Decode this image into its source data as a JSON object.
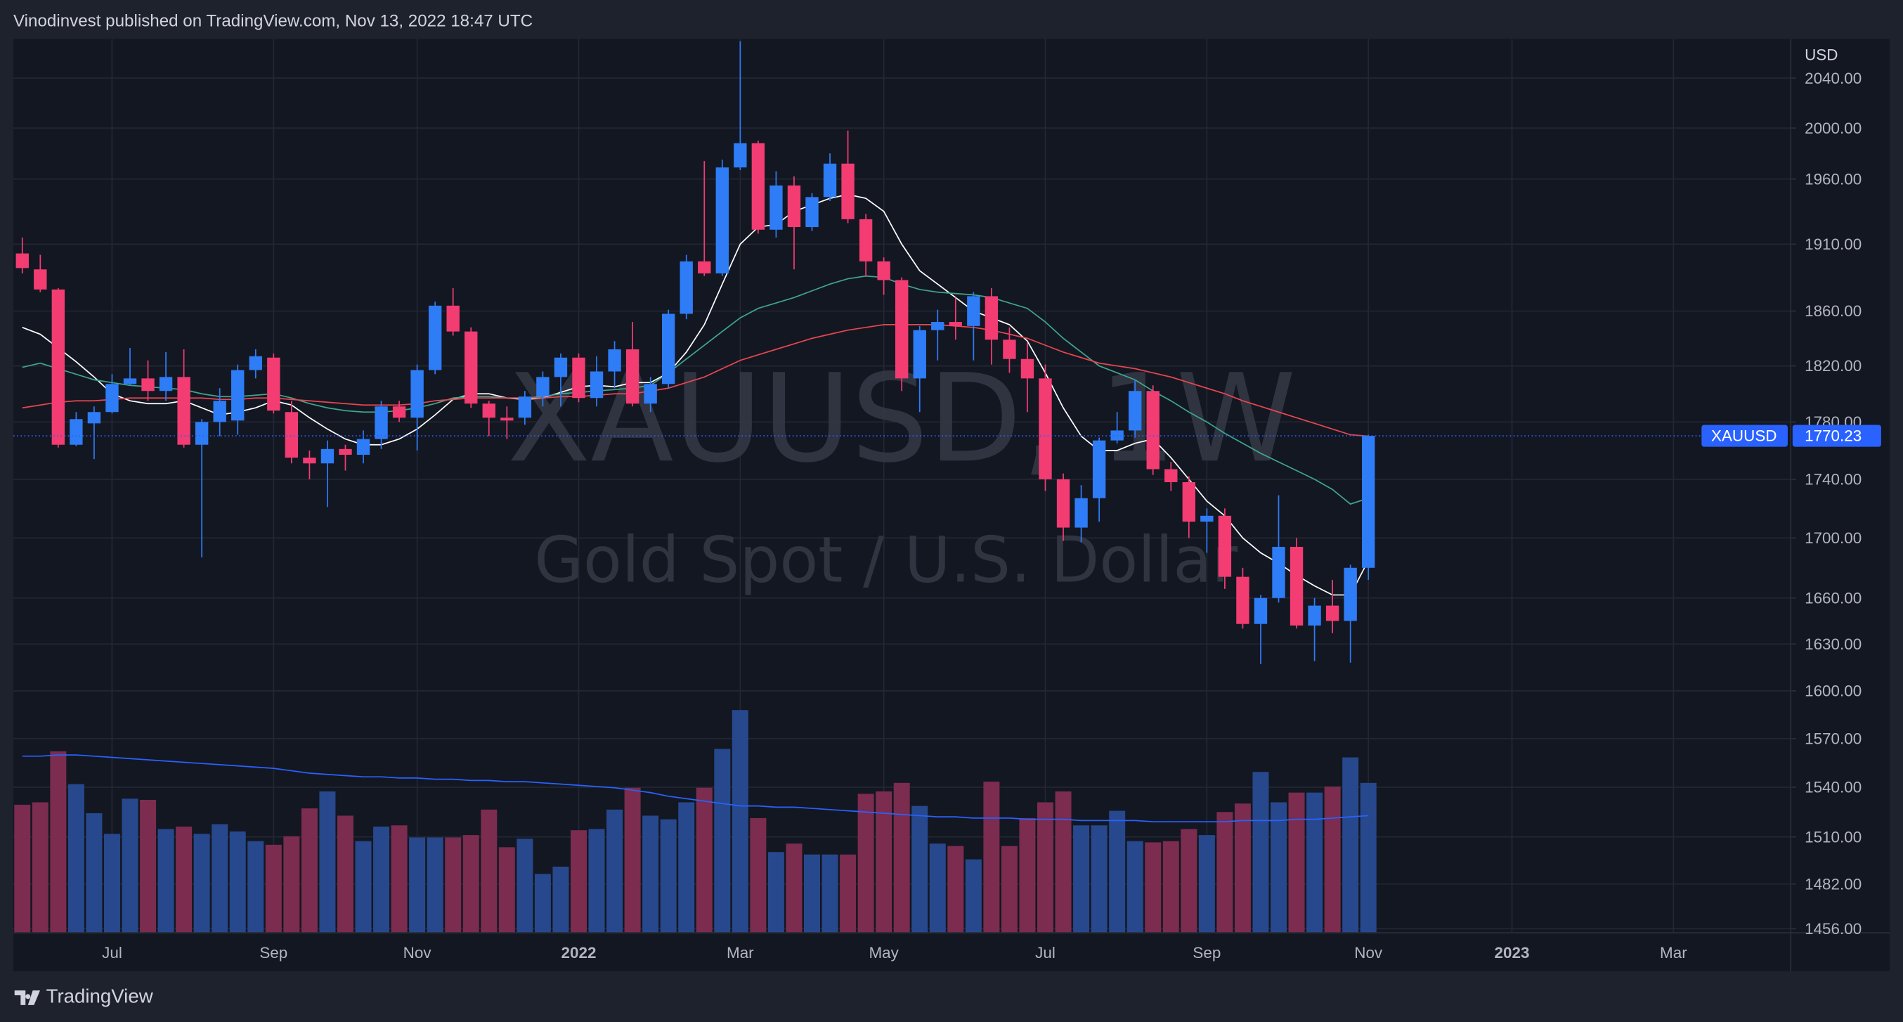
{
  "header": {
    "text": "Vinodinvest published on TradingView.com, Nov 13, 2022 18:47 UTC"
  },
  "footer": {
    "brand": "TradingView"
  },
  "chart_data": {
    "type": "candlestick",
    "watermark": "XAUUSD, 1W",
    "watermark_subtitle": "Gold Spot / U.S. Dollar",
    "symbol": "XAUUSD",
    "currency": "USD",
    "log_scale": true,
    "grid": true,
    "up_color": "#2e7cf6",
    "down_color": "#f23c72",
    "volume_up_color": "#27488c",
    "volume_down_color": "#7b2c4f",
    "ylim": [
      1454,
      2072
    ],
    "yticks": [
      {
        "value": 2040,
        "label": "2040.00"
      },
      {
        "value": 2000,
        "label": "2000.00"
      },
      {
        "value": 1960,
        "label": "1960.00"
      },
      {
        "value": 1910,
        "label": "1910.00"
      },
      {
        "value": 1860,
        "label": "1860.00"
      },
      {
        "value": 1820,
        "label": "1820.00"
      },
      {
        "value": 1780,
        "label": "1780.00"
      },
      {
        "value": 1740,
        "label": "1740.00"
      },
      {
        "value": 1700,
        "label": "1700.00"
      },
      {
        "value": 1660,
        "label": "1660.00"
      },
      {
        "value": 1630,
        "label": "1630.00"
      },
      {
        "value": 1600,
        "label": "1600.00"
      },
      {
        "value": 1570,
        "label": "1570.00"
      },
      {
        "value": 1540,
        "label": "1540.00"
      },
      {
        "value": 1510,
        "label": "1510.00"
      },
      {
        "value": 1482,
        "label": "1482.00"
      },
      {
        "value": 1456,
        "label": "1456.00"
      }
    ],
    "categories": [
      null,
      null,
      null,
      null,
      null,
      "Jul",
      null,
      null,
      null,
      null,
      null,
      null,
      null,
      null,
      "Sep",
      null,
      null,
      null,
      null,
      null,
      null,
      null,
      "Nov",
      null,
      null,
      null,
      null,
      null,
      null,
      null,
      null,
      "2022",
      null,
      null,
      null,
      null,
      null,
      null,
      null,
      null,
      "Mar",
      null,
      null,
      null,
      null,
      null,
      null,
      null,
      "May",
      null,
      null,
      null,
      null,
      null,
      null,
      null,
      null,
      "Jul",
      null,
      null,
      null,
      null,
      null,
      null,
      null,
      null,
      "Sep",
      null,
      null,
      null,
      null,
      null,
      null,
      null,
      null,
      "Nov",
      null,
      null,
      null,
      null,
      null,
      null,
      null,
      "2023",
      null,
      null,
      null,
      null,
      null,
      null,
      null,
      null,
      "Mar",
      null,
      null,
      null,
      null,
      null,
      null
    ],
    "open": [
      1903,
      1891,
      1876,
      1764,
      1779,
      1787,
      1807,
      1811,
      1802,
      1812,
      1764,
      1780,
      1781,
      1817,
      1826,
      1787,
      1755,
      1751,
      1761,
      1757,
      1768,
      1791,
      1783,
      1817,
      1864,
      1845,
      1793,
      1783,
      1783,
      1798,
      1812,
      1826,
      1797,
      1816,
      1832,
      1793,
      1807,
      1858,
      1897,
      1888,
      1969,
      1988,
      1921,
      1955,
      1923,
      1946,
      1972,
      1929,
      1897,
      1883,
      1811,
      1846,
      1852,
      1849,
      1871,
      1839,
      1825,
      1811,
      1740,
      1707,
      1727,
      1767,
      1774,
      1802,
      1747,
      1738,
      1711,
      1715,
      1674,
      1643,
      1660,
      1694,
      1642,
      1655,
      1645,
      1680,
      null,
      null,
      null,
      null,
      null,
      null,
      null,
      null,
      null,
      null,
      null,
      null,
      null,
      null,
      null,
      null,
      null,
      null,
      null,
      null,
      null,
      null,
      null
    ],
    "high": [
      1915,
      1902,
      1877,
      1787,
      1791,
      1814,
      1833,
      1824,
      1830,
      1832,
      1782,
      1804,
      1821,
      1832,
      1829,
      1795,
      1760,
      1767,
      1764,
      1774,
      1795,
      1795,
      1821,
      1867,
      1877,
      1848,
      1795,
      1791,
      1802,
      1816,
      1829,
      1829,
      1827,
      1838,
      1852,
      1812,
      1861,
      1902,
      1974,
      1975,
      2070,
      1990,
      1966,
      1962,
      1949,
      1980,
      1998,
      1933,
      1900,
      1885,
      1849,
      1861,
      1870,
      1874,
      1877,
      1848,
      1837,
      1821,
      1744,
      1736,
      1769,
      1787,
      1810,
      1806,
      1752,
      1742,
      1720,
      1720,
      1680,
      1662,
      1729,
      1700,
      1660,
      1672,
      1682,
      1771,
      null,
      null,
      null,
      null,
      null,
      null,
      null,
      null,
      null,
      null,
      null,
      null,
      null,
      null,
      null,
      null,
      null,
      null,
      null,
      null,
      null,
      null,
      null
    ],
    "low": [
      1888,
      1874,
      1762,
      1763,
      1754,
      1786,
      1806,
      1795,
      1795,
      1762,
      1687,
      1770,
      1771,
      1811,
      1786,
      1751,
      1740,
      1721,
      1746,
      1751,
      1761,
      1780,
      1760,
      1814,
      1842,
      1790,
      1770,
      1768,
      1778,
      1791,
      1791,
      1794,
      1791,
      1804,
      1791,
      1787,
      1804,
      1854,
      1886,
      1886,
      1967,
      1918,
      1915,
      1891,
      1920,
      1943,
      1926,
      1886,
      1872,
      1802,
      1787,
      1824,
      1839,
      1824,
      1821,
      1815,
      1787,
      1732,
      1698,
      1697,
      1711,
      1765,
      1769,
      1743,
      1732,
      1700,
      1690,
      1666,
      1640,
      1617,
      1657,
      1640,
      1619,
      1637,
      1618,
      1672,
      null,
      null,
      null,
      null,
      null,
      null,
      null,
      null,
      null,
      null,
      null,
      null,
      null,
      null,
      null,
      null,
      null,
      null,
      null,
      null,
      null,
      null,
      null
    ],
    "close": [
      1892,
      1876,
      1764,
      1782,
      1787,
      1807,
      1811,
      1802,
      1812,
      1764,
      1780,
      1795,
      1817,
      1827,
      1788,
      1755,
      1751,
      1761,
      1757,
      1768,
      1791,
      1783,
      1817,
      1864,
      1845,
      1793,
      1783,
      1781,
      1798,
      1812,
      1826,
      1797,
      1816,
      1832,
      1793,
      1807,
      1858,
      1897,
      1888,
      1969,
      1988,
      1921,
      1955,
      1923,
      1946,
      1972,
      1929,
      1897,
      1883,
      1811,
      1846,
      1852,
      1849,
      1871,
      1839,
      1825,
      1811,
      1740,
      1707,
      1727,
      1767,
      1774,
      1802,
      1747,
      1738,
      1711,
      1715,
      1674,
      1643,
      1660,
      1694,
      1642,
      1655,
      1645,
      1680,
      1770.23,
      null,
      null,
      null,
      null,
      null,
      null,
      null,
      null,
      null,
      null,
      null,
      null,
      null,
      null,
      null,
      null,
      null,
      null,
      null,
      null,
      null,
      null,
      null
    ],
    "volume": [
      105,
      107,
      149,
      122,
      98,
      81,
      110,
      109,
      85,
      87,
      81,
      89,
      83,
      75,
      72,
      79,
      102,
      116,
      96,
      75,
      87,
      88,
      78,
      78,
      78,
      80,
      101,
      70,
      77,
      48,
      54,
      84,
      85,
      101,
      119,
      96,
      93,
      107,
      119,
      151,
      183,
      94,
      66,
      73,
      64,
      64,
      64,
      114,
      116,
      123,
      104,
      73,
      71,
      60,
      124,
      71,
      94,
      107,
      116,
      88,
      88,
      100,
      75,
      74,
      75,
      85,
      80,
      99,
      106,
      132,
      107,
      115,
      115,
      120,
      144,
      123,
      null,
      null,
      null,
      null,
      null,
      null,
      null,
      null,
      null,
      null,
      null,
      null,
      null,
      null,
      null,
      null,
      null,
      null,
      null,
      null,
      null,
      null,
      null
    ],
    "lines": [
      {
        "color": "#ffffff",
        "values": [
          1848,
          1843,
          1833,
          1823,
          1812,
          1800,
          1795,
          1793,
          1793,
          1795,
          1790,
          1785,
          1787,
          1790,
          1795,
          1792,
          1783,
          1775,
          1768,
          1764,
          1764,
          1768,
          1775,
          1785,
          1796,
          1800,
          1800,
          1797,
          1796,
          1797,
          1801,
          1805,
          1806,
          1805,
          1808,
          1808,
          1815,
          1830,
          1850,
          1880,
          1910,
          1923,
          1925,
          1935,
          1940,
          1945,
          1948,
          1945,
          1935,
          1910,
          1890,
          1880,
          1870,
          1860,
          1855,
          1850,
          1838,
          1815,
          1790,
          1770,
          1760,
          1760,
          1765,
          1768,
          1755,
          1740,
          1725,
          1715,
          1700,
          1690,
          1683,
          1675,
          1668,
          1662,
          1662,
          1685,
          null,
          null,
          null,
          null,
          null,
          null,
          null,
          null,
          null,
          null,
          null,
          null,
          null,
          null,
          null,
          null,
          null,
          null,
          null,
          null,
          null,
          null,
          null
        ]
      },
      {
        "color": "#3fa58f",
        "values": [
          1819,
          1822,
          1818,
          1814,
          1810,
          1808,
          1806,
          1805,
          1804,
          1803,
          1800,
          1798,
          1798,
          1799,
          1800,
          1797,
          1793,
          1790,
          1788,
          1787,
          1787,
          1788,
          1790,
          1793,
          1797,
          1798,
          1798,
          1797,
          1797,
          1798,
          1800,
          1801,
          1802,
          1803,
          1804,
          1806,
          1815,
          1825,
          1835,
          1845,
          1855,
          1862,
          1866,
          1870,
          1875,
          1880,
          1884,
          1886,
          1885,
          1880,
          1876,
          1874,
          1873,
          1872,
          1870,
          1866,
          1862,
          1852,
          1840,
          1830,
          1820,
          1815,
          1810,
          1802,
          1795,
          1787,
          1780,
          1772,
          1765,
          1758,
          1752,
          1746,
          1740,
          1733,
          1723,
          1727,
          null,
          null,
          null,
          null,
          null,
          null,
          null,
          null,
          null,
          null,
          null,
          null,
          null,
          null,
          null,
          null,
          null,
          null,
          null,
          null,
          null,
          null,
          null
        ]
      },
      {
        "color": "#e8464f",
        "values": [
          1790,
          1792,
          1794,
          1795,
          1795,
          1796,
          1797,
          1797,
          1797,
          1797,
          1797,
          1796,
          1796,
          1797,
          1797,
          1796,
          1795,
          1794,
          1793,
          1792,
          1792,
          1792,
          1793,
          1795,
          1796,
          1797,
          1797,
          1797,
          1797,
          1797,
          1798,
          1798,
          1799,
          1800,
          1800,
          1802,
          1804,
          1808,
          1812,
          1818,
          1824,
          1828,
          1832,
          1836,
          1840,
          1843,
          1846,
          1848,
          1850,
          1850,
          1850,
          1850,
          1849,
          1848,
          1846,
          1843,
          1840,
          1835,
          1830,
          1826,
          1822,
          1820,
          1818,
          1815,
          1812,
          1808,
          1804,
          1800,
          1795,
          1791,
          1787,
          1783,
          1779,
          1775,
          1771,
          1770,
          null,
          null,
          null,
          null,
          null,
          null,
          null,
          null,
          null,
          null,
          null,
          null,
          null,
          null,
          null,
          null,
          null,
          null,
          null,
          null,
          null,
          null,
          null
        ]
      }
    ],
    "volume_line": {
      "color": "#2962ff",
      "values": [
        145,
        145,
        146,
        146,
        145,
        144,
        143,
        142,
        141,
        140,
        139,
        138,
        137,
        136,
        135,
        133,
        131,
        130,
        129,
        128,
        128,
        127,
        127,
        126,
        126,
        125,
        125,
        124,
        124,
        123,
        122,
        121,
        120,
        119,
        117,
        115,
        112,
        110,
        108,
        106,
        104,
        104,
        103,
        103,
        102,
        101,
        100,
        99,
        98,
        97,
        96,
        95,
        95,
        94,
        94,
        94,
        93,
        93,
        93,
        92,
        92,
        92,
        92,
        91,
        91,
        91,
        91,
        91,
        92,
        92,
        92,
        93,
        93,
        94,
        95,
        96,
        null,
        null,
        null,
        null,
        null,
        null,
        null,
        null,
        null,
        null,
        null,
        null,
        null,
        null,
        null,
        null,
        null,
        null,
        null,
        null,
        null,
        null,
        null
      ]
    }
  }
}
